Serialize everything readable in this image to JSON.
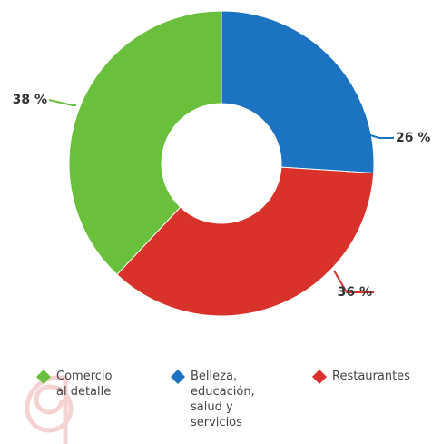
{
  "chart_data": {
    "type": "donut",
    "categories": [
      "Comercio al detalle",
      "Belleza, educación, salud y servicios",
      "Restaurantes"
    ],
    "values": [
      38,
      26,
      36
    ],
    "value_labels": [
      "38 %",
      "26 %",
      "36 %"
    ],
    "colors": [
      "#6abf3c",
      "#1b73c2",
      "#d8322a"
    ]
  }
}
